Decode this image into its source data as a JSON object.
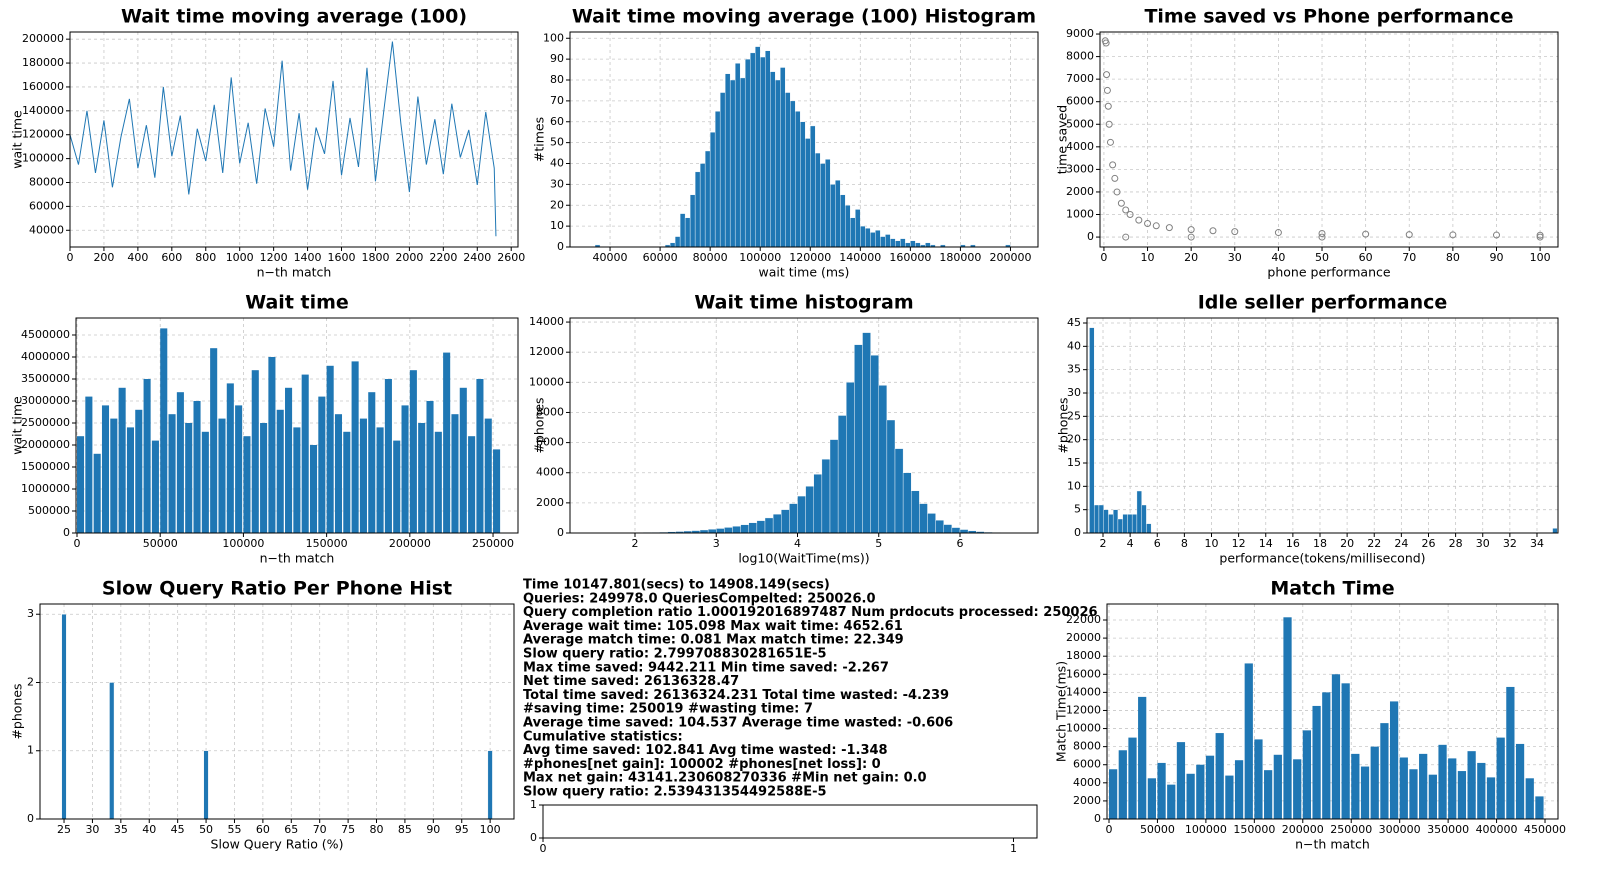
{
  "chart_data": [
    {
      "type": "line",
      "title": "Wait time moving average (100)",
      "xlabel": "n−th match",
      "ylabel": "wait time",
      "grid": true,
      "xlim": [
        0,
        2640
      ],
      "ylim": [
        26000,
        206000
      ],
      "xticks": [
        0,
        200,
        400,
        600,
        800,
        1000,
        1200,
        1400,
        1600,
        1800,
        2000,
        2200,
        2400,
        2600
      ],
      "yticks": [
        40000,
        60000,
        80000,
        100000,
        120000,
        140000,
        160000,
        180000,
        200000
      ],
      "series": [
        {
          "color": "#1f77b4",
          "x": [
            0,
            50,
            100,
            150,
            200,
            250,
            300,
            350,
            400,
            450,
            500,
            550,
            600,
            650,
            700,
            750,
            800,
            850,
            900,
            950,
            1000,
            1050,
            1100,
            1150,
            1200,
            1250,
            1300,
            1350,
            1400,
            1450,
            1500,
            1550,
            1600,
            1650,
            1700,
            1750,
            1800,
            1850,
            1900,
            1950,
            2000,
            2050,
            2100,
            2150,
            2200,
            2250,
            2300,
            2350,
            2400,
            2450,
            2500,
            2510
          ],
          "values": [
            120000,
            95000,
            140000,
            88000,
            132000,
            76000,
            118000,
            150000,
            92000,
            128000,
            84000,
            160000,
            102000,
            136000,
            70000,
            125000,
            98000,
            145000,
            88000,
            168000,
            96000,
            130000,
            79000,
            142000,
            110000,
            182000,
            90000,
            138000,
            74000,
            126000,
            104000,
            165000,
            86000,
            134000,
            93000,
            176000,
            81000,
            141000,
            198000,
            129000,
            72000,
            152000,
            95000,
            133000,
            87000,
            146000,
            101000,
            124000,
            78000,
            139000,
            92000,
            35000
          ]
        }
      ]
    },
    {
      "type": "histogram",
      "title": "Wait time moving average (100) Histogram",
      "xlabel": "wait time (ms)",
      "ylabel": "#times",
      "grid": true,
      "color": "#1f77b4",
      "xlim": [
        24000,
        211000
      ],
      "ylim": [
        0,
        103
      ],
      "xticks": [
        40000,
        60000,
        80000,
        100000,
        120000,
        140000,
        160000,
        180000,
        200000
      ],
      "yticks": [
        0,
        10,
        20,
        30,
        40,
        50,
        60,
        70,
        80,
        90,
        100
      ],
      "bins": [
        34000,
        36000,
        38000,
        40000,
        42000,
        44000,
        46000,
        48000,
        50000,
        52000,
        54000,
        56000,
        58000,
        60000,
        62000,
        64000,
        66000,
        68000,
        70000,
        72000,
        74000,
        76000,
        78000,
        80000,
        82000,
        84000,
        86000,
        88000,
        90000,
        92000,
        94000,
        96000,
        98000,
        100000,
        102000,
        104000,
        106000,
        108000,
        110000,
        112000,
        114000,
        116000,
        118000,
        120000,
        122000,
        124000,
        126000,
        128000,
        130000,
        132000,
        134000,
        136000,
        138000,
        140000,
        142000,
        144000,
        146000,
        148000,
        150000,
        152000,
        154000,
        156000,
        158000,
        160000,
        162000,
        164000,
        166000,
        168000,
        170000,
        172000,
        174000,
        176000,
        178000,
        180000,
        182000,
        184000,
        186000,
        188000,
        190000,
        192000,
        194000,
        196000,
        198000,
        200000
      ],
      "values": [
        1,
        0,
        0,
        0,
        0,
        0,
        0,
        0,
        0,
        0,
        0,
        0,
        0,
        0,
        1,
        2,
        5,
        16,
        14,
        25,
        36,
        40,
        46,
        55,
        65,
        74,
        83,
        80,
        88,
        81,
        90,
        93,
        96,
        91,
        94,
        84,
        80,
        86,
        74,
        70,
        65,
        60,
        52,
        58,
        45,
        40,
        42,
        30,
        32,
        25,
        20,
        14,
        18,
        10,
        9,
        7,
        8,
        5,
        6,
        4,
        3,
        4,
        2,
        3,
        2,
        1,
        2,
        1,
        0,
        1,
        0,
        0,
        0,
        1,
        0,
        1,
        0,
        0,
        0,
        0,
        0,
        0,
        1
      ]
    },
    {
      "type": "scatter",
      "title": "Time saved vs Phone performance",
      "xlabel": "phone performance",
      "ylabel": "time saved",
      "grid": true,
      "color": "#808080",
      "xlim": [
        -0.9,
        104.1
      ],
      "ylim": [
        -440,
        9090
      ],
      "xticks": [
        0,
        10,
        20,
        30,
        40,
        50,
        60,
        70,
        80,
        90,
        100
      ],
      "yticks": [
        0,
        1000,
        2000,
        3000,
        4000,
        5000,
        6000,
        7000,
        8000,
        9000
      ],
      "x": [
        0.3,
        0.5,
        0.6,
        0.8,
        1,
        1.2,
        1.5,
        2,
        2.5,
        3,
        4,
        5,
        6,
        8,
        10,
        12,
        15,
        20,
        25,
        30,
        40,
        50,
        60,
        70,
        80,
        90,
        100,
        5,
        20,
        50,
        100
      ],
      "values": [
        8700,
        8600,
        7200,
        6500,
        5800,
        5000,
        4200,
        3200,
        2600,
        2000,
        1500,
        1200,
        1000,
        750,
        600,
        500,
        420,
        330,
        280,
        240,
        200,
        160,
        130,
        110,
        100,
        90,
        80,
        0,
        0,
        0,
        0
      ]
    },
    {
      "type": "stem",
      "title": "Wait time",
      "xlabel": "n−th match",
      "ylabel": "wait time",
      "grid": true,
      "color": "#1f77b4",
      "xlim": [
        -600,
        265000
      ],
      "ylim": [
        0,
        4886000
      ],
      "xticks": [
        0,
        50000,
        100000,
        150000,
        200000,
        250000
      ],
      "yticks": [
        0,
        500000,
        1000000,
        1500000,
        2000000,
        2500000,
        3000000,
        3500000,
        4000000,
        4500000
      ],
      "x": [
        0,
        5000,
        10000,
        15000,
        20000,
        25000,
        30000,
        35000,
        40000,
        45000,
        50000,
        55000,
        60000,
        65000,
        70000,
        75000,
        80000,
        85000,
        90000,
        95000,
        100000,
        105000,
        110000,
        115000,
        120000,
        125000,
        130000,
        135000,
        140000,
        145000,
        150000,
        155000,
        160000,
        165000,
        170000,
        175000,
        180000,
        185000,
        190000,
        195000,
        200000,
        205000,
        210000,
        215000,
        220000,
        225000,
        230000,
        235000,
        240000,
        245000,
        250000
      ],
      "values": [
        2200000,
        3100000,
        1800000,
        2900000,
        2600000,
        3300000,
        2400000,
        2800000,
        3500000,
        2100000,
        4650000,
        2700000,
        3200000,
        2500000,
        3000000,
        2300000,
        4200000,
        2600000,
        3400000,
        2900000,
        2200000,
        3700000,
        2500000,
        4000000,
        2800000,
        3300000,
        2400000,
        3600000,
        2000000,
        3100000,
        3800000,
        2700000,
        2300000,
        3900000,
        2600000,
        3200000,
        2400000,
        3500000,
        2100000,
        2900000,
        3700000,
        2500000,
        3000000,
        2300000,
        4100000,
        2700000,
        3300000,
        2200000,
        3500000,
        2600000,
        1900000
      ]
    },
    {
      "type": "histogram",
      "title": "Wait time histogram",
      "xlabel": "log10(WaitTime(ms))",
      "ylabel": "#phones",
      "grid": true,
      "color": "#1f77b4",
      "xlim": [
        1.2,
        6.96
      ],
      "ylim": [
        0,
        14270
      ],
      "xticks": [
        2,
        3,
        4,
        5,
        6
      ],
      "yticks": [
        0,
        2000,
        4000,
        6000,
        8000,
        10000,
        12000,
        14000
      ],
      "bins": [
        1.6,
        1.7,
        1.8,
        1.9,
        2.0,
        2.1,
        2.2,
        2.3,
        2.4,
        2.5,
        2.6,
        2.7,
        2.8,
        2.9,
        3.0,
        3.1,
        3.2,
        3.3,
        3.4,
        3.5,
        3.6,
        3.7,
        3.8,
        3.9,
        4.0,
        4.1,
        4.2,
        4.3,
        4.4,
        4.5,
        4.6,
        4.7,
        4.8,
        4.9,
        5.0,
        5.1,
        5.2,
        5.3,
        5.4,
        5.5,
        5.6,
        5.7,
        5.8,
        5.9,
        6.0,
        6.1,
        6.2,
        6.3,
        6.4,
        6.5,
        6.6,
        6.7
      ],
      "values": [
        5,
        10,
        15,
        20,
        30,
        40,
        50,
        60,
        80,
        100,
        130,
        160,
        200,
        250,
        300,
        370,
        450,
        550,
        680,
        820,
        1000,
        1250,
        1550,
        1950,
        2450,
        3100,
        3900,
        4900,
        6200,
        7800,
        10000,
        12500,
        13300,
        11800,
        9800,
        7500,
        5600,
        4000,
        2800,
        1950,
        1300,
        850,
        560,
        360,
        230,
        150,
        95,
        60,
        35,
        20,
        10
      ]
    },
    {
      "type": "histogram",
      "title": "Idle seller performance",
      "xlabel": "performance(tokens/millisecond)",
      "ylabel": "#phones",
      "grid": true,
      "color": "#1f77b4",
      "xlim": [
        0.82,
        35.55
      ],
      "ylim": [
        0,
        46.07
      ],
      "xticks": [
        2,
        4,
        6,
        8,
        10,
        12,
        14,
        16,
        18,
        20,
        22,
        24,
        26,
        28,
        30,
        32,
        34
      ],
      "yticks": [
        0,
        5,
        10,
        15,
        20,
        25,
        30,
        35,
        40,
        45
      ],
      "bins": [
        1.0,
        1.35,
        1.7,
        2.05,
        2.4,
        2.75,
        3.1,
        3.45,
        3.8,
        4.15,
        4.5,
        4.85,
        5.2,
        5.55,
        5.9,
        35.15,
        35.5
      ],
      "values": [
        44,
        6,
        6,
        5,
        4,
        5,
        3,
        4,
        4,
        4,
        9,
        6,
        2,
        0,
        0,
        1
      ]
    },
    {
      "type": "histogram",
      "title": "Slow Query Ratio Per Phone Hist",
      "xlabel": "Slow Query Ratio (%)",
      "ylabel": "#phones",
      "grid": true,
      "color": "#1f77b4",
      "xlim": [
        20.77,
        104.2
      ],
      "ylim": [
        0,
        3.15
      ],
      "xticks": [
        25,
        30,
        35,
        40,
        45,
        50,
        55,
        60,
        65,
        70,
        75,
        80,
        85,
        90,
        95,
        100
      ],
      "yticks": [
        0,
        1,
        2,
        3
      ],
      "bins": [
        24.6,
        25.4,
        33,
        33.8,
        49.6,
        50.4,
        99.6,
        100.4
      ],
      "values": [
        3,
        0,
        2,
        0,
        1,
        0,
        1
      ]
    },
    {
      "type": "stem",
      "title": "Match Time",
      "xlabel": "n−th match",
      "ylabel": "Match Time(ms)",
      "grid": true,
      "color": "#1f77b4",
      "xlim": [
        -2060,
        463400
      ],
      "ylim": [
        0,
        23770
      ],
      "xticks": [
        0,
        50000,
        100000,
        150000,
        200000,
        250000,
        300000,
        350000,
        400000,
        450000
      ],
      "yticks": [
        0,
        2000,
        4000,
        6000,
        8000,
        10000,
        12000,
        14000,
        16000,
        18000,
        20000,
        22000
      ],
      "x": [
        0,
        10000,
        20000,
        30000,
        40000,
        50000,
        60000,
        70000,
        80000,
        90000,
        100000,
        110000,
        120000,
        130000,
        140000,
        150000,
        160000,
        170000,
        180000,
        190000,
        200000,
        210000,
        220000,
        230000,
        240000,
        250000,
        260000,
        270000,
        280000,
        290000,
        300000,
        310000,
        320000,
        330000,
        340000,
        350000,
        360000,
        370000,
        380000,
        390000,
        400000,
        410000,
        420000,
        430000,
        440000
      ],
      "values": [
        5500,
        7600,
        9000,
        13500,
        4500,
        6200,
        3800,
        8500,
        5000,
        6000,
        7000,
        9500,
        4800,
        6500,
        17200,
        8800,
        5400,
        7100,
        22300,
        6600,
        9800,
        12500,
        14000,
        16000,
        15000,
        7200,
        5800,
        8000,
        10600,
        13000,
        6800,
        5500,
        7200,
        4900,
        8200,
        6700,
        5300,
        7500,
        6200,
        4600,
        9000,
        14600,
        8300,
        4500,
        2500
      ]
    },
    {
      "type": "line",
      "grid": false,
      "xlim": [
        0,
        1.05
      ],
      "ylim": [
        0,
        1
      ],
      "xticks": [
        0,
        1
      ],
      "yticks": [
        0,
        1
      ],
      "series": []
    }
  ],
  "stats_text": [
    "Time 10147.801(secs) to 14908.149(secs)",
    "Queries: 249978.0 QueriesCompelted: 250026.0",
    "Query completion ratio 1.000192016897487 Num prdocuts processed: 250026",
    "Average wait time: 105.098 Max wait time: 4652.61",
    "Average match time: 0.081 Max match time: 22.349",
    "Slow query ratio: 2.799708830281651E-5",
    "Max time saved: 9442.211 Min time saved: -2.267",
    "Net time saved: 26136328.47",
    "Total time saved: 26136324.231 Total time wasted: -4.239",
    "#saving time: 250019 #wasting time: 7",
    "Average time saved: 104.537 Average time wasted: -0.606",
    "Cumulative statistics:",
    "Avg time saved: 102.841 Avg time wasted: -1.348",
    "#phones[net gain]: 100002 #phones[net loss]: 0",
    "Max net gain: 43141.230608270336 #Min net gain: 0.0",
    "Slow query ratio: 2.539431354492588E-5"
  ]
}
